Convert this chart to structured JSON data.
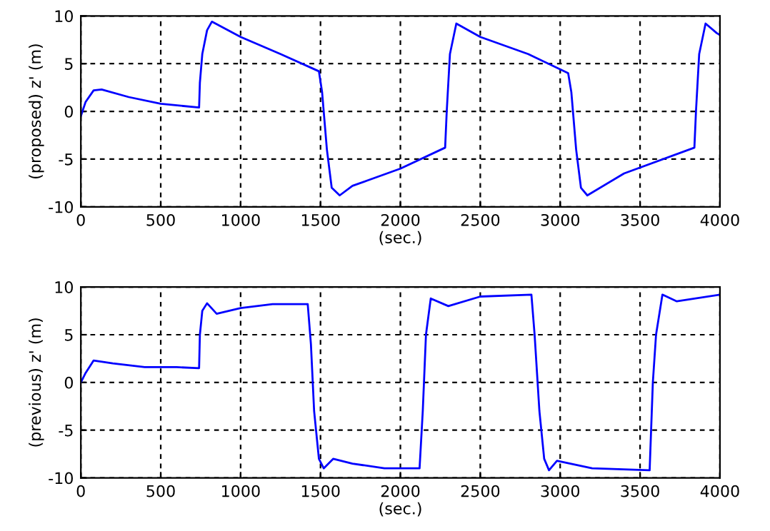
{
  "chart_data": [
    {
      "type": "line",
      "xlabel": "(sec.)",
      "ylabel": "(proposed) z' (m)",
      "xlim": [
        0,
        4000
      ],
      "ylim": [
        -10,
        10
      ],
      "xticks": [
        0,
        500,
        1000,
        1500,
        2000,
        2500,
        3000,
        3500,
        4000
      ],
      "yticks": [
        -10,
        -5,
        0,
        5,
        10
      ],
      "grid": true,
      "line_style": "solid",
      "marker": "none",
      "series": [
        {
          "color": "#0000ff",
          "x": [
            0,
            30,
            80,
            130,
            300,
            500,
            740,
            745,
            760,
            790,
            820,
            1000,
            1250,
            1490,
            1510,
            1540,
            1570,
            1620,
            1700,
            2000,
            2280,
            2290,
            2310,
            2350,
            2500,
            2800,
            3050,
            3070,
            3100,
            3130,
            3170,
            3400,
            3840,
            3850,
            3870,
            3910,
            3980,
            4000
          ],
          "values": [
            -0.5,
            1,
            2.2,
            2.3,
            1.5,
            0.8,
            0.4,
            3,
            6,
            8.5,
            9.4,
            7.8,
            6,
            4.2,
            2,
            -4,
            -8,
            -8.8,
            -7.8,
            -6,
            -3.8,
            0,
            6,
            9.2,
            7.8,
            6,
            4,
            2,
            -4,
            -8,
            -8.8,
            -6.5,
            -3.8,
            0,
            6,
            9.2,
            8.2,
            8
          ]
        }
      ]
    },
    {
      "type": "line",
      "xlabel": "(sec.)",
      "ylabel": "(previous) z' (m)",
      "xlim": [
        0,
        4000
      ],
      "ylim": [
        -10,
        10
      ],
      "xticks": [
        0,
        500,
        1000,
        1500,
        2000,
        2500,
        3000,
        3500,
        4000
      ],
      "yticks": [
        -10,
        -5,
        0,
        5,
        10
      ],
      "grid": true,
      "line_style": "solid",
      "marker": "none",
      "series": [
        {
          "color": "#0000ff",
          "x": [
            0,
            30,
            80,
            200,
            400,
            600,
            740,
            745,
            760,
            790,
            850,
            1000,
            1200,
            1420,
            1440,
            1460,
            1490,
            1520,
            1580,
            1700,
            1900,
            2120,
            2140,
            2160,
            2190,
            2300,
            2500,
            2820,
            2840,
            2870,
            2900,
            2930,
            2980,
            3200,
            3560,
            3580,
            3600,
            3640,
            3730,
            4000
          ],
          "values": [
            0,
            1,
            2.3,
            2,
            1.6,
            1.6,
            1.5,
            5,
            7.5,
            8.3,
            7.2,
            7.8,
            8.2,
            8.2,
            4,
            -3,
            -8,
            -9,
            -8,
            -8.5,
            -9,
            -9,
            -3,
            5,
            8.8,
            8,
            9,
            9.2,
            5,
            -3,
            -8,
            -9.2,
            -8.2,
            -9,
            -9.2,
            0,
            5,
            9.2,
            8.5,
            9.2
          ]
        }
      ]
    }
  ]
}
